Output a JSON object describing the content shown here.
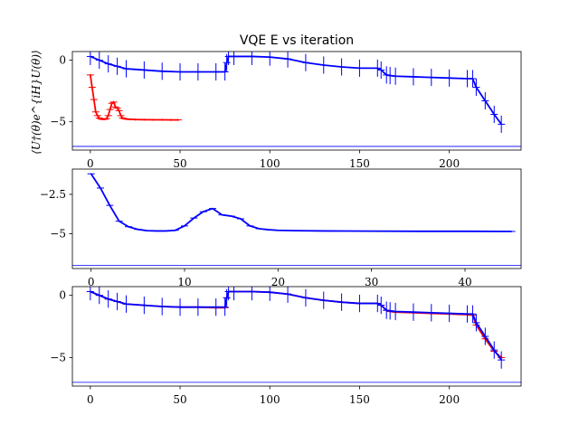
{
  "chart_data": {
    "title": "VQE E vs iteration",
    "panels": [
      {
        "type": "line",
        "ylabel": "⟨U†(θ)e^{iH}U(θ)⟩",
        "xlim": [
          -10,
          240
        ],
        "ylim": [
          -7.3,
          0.7
        ],
        "xticks": [
          0,
          50,
          100,
          150,
          200
        ],
        "yticks": [
          0,
          -5
        ],
        "hline": -7.0,
        "series": [
          {
            "color": "#ff0000",
            "errorbars": true,
            "err": 0.08,
            "x": [
              0,
              1,
              2,
              3,
              4,
              5,
              6,
              7,
              8,
              9,
              10,
              11,
              12,
              13,
              14,
              15,
              16,
              17,
              18,
              19,
              20,
              22,
              25,
              30,
              35,
              40,
              45,
              49
            ],
            "y": [
              -1.2,
              -2.2,
              -3.2,
              -4.2,
              -4.5,
              -4.7,
              -4.78,
              -4.8,
              -4.8,
              -4.75,
              -4.5,
              -4.0,
              -3.5,
              -3.4,
              -3.8,
              -3.9,
              -4.1,
              -4.5,
              -4.7,
              -4.75,
              -4.78,
              -4.8,
              -4.82,
              -4.83,
              -4.84,
              -4.84,
              -4.85,
              -4.85
            ]
          },
          {
            "color": "#0000ff",
            "errorbars": true,
            "err": 0.7,
            "x": [
              0,
              5,
              10,
              15,
              20,
              30,
              40,
              50,
              60,
              70,
              75,
              76,
              77,
              80,
              90,
              100,
              110,
              120,
              130,
              140,
              150,
              160,
              162,
              165,
              167,
              170,
              180,
              190,
              200,
              210,
              213,
              215,
              220,
              225,
              229
            ],
            "y": [
              0.3,
              0.0,
              -0.3,
              -0.5,
              -0.7,
              -0.8,
              -0.9,
              -0.95,
              -0.95,
              -0.95,
              -0.95,
              -0.2,
              0.3,
              0.3,
              0.3,
              0.25,
              0.1,
              -0.2,
              -0.4,
              -0.55,
              -0.65,
              -0.65,
              -0.8,
              -1.2,
              -1.25,
              -1.3,
              -1.35,
              -1.4,
              -1.45,
              -1.5,
              -1.5,
              -2.2,
              -3.3,
              -4.4,
              -5.2
            ]
          }
        ]
      },
      {
        "type": "line",
        "ylabel": "",
        "xlim": [
          -2,
          46
        ],
        "ylim": [
          -7.2,
          -0.9
        ],
        "xticks": [
          0,
          10,
          20,
          30,
          40
        ],
        "yticks": [
          -2.5,
          -5.0
        ],
        "hline": -7.0,
        "series": [
          {
            "color": "#0000ff",
            "errorbars": true,
            "err": 0.03,
            "x": [
              0,
              1,
              2,
              3,
              4,
              5,
              6,
              7,
              8,
              9,
              10,
              11,
              12,
              13,
              14,
              15,
              16,
              17,
              18,
              19,
              20,
              22,
              25,
              30,
              35,
              40,
              45
            ],
            "y": [
              -1.2,
              -2.1,
              -3.2,
              -4.2,
              -4.55,
              -4.72,
              -4.8,
              -4.82,
              -4.82,
              -4.78,
              -4.5,
              -4.0,
              -3.6,
              -3.4,
              -3.8,
              -3.88,
              -4.05,
              -4.5,
              -4.68,
              -4.74,
              -4.78,
              -4.8,
              -4.82,
              -4.83,
              -4.84,
              -4.84,
              -4.85
            ]
          }
        ]
      },
      {
        "type": "line",
        "ylabel": "",
        "xlim": [
          -10,
          240
        ],
        "ylim": [
          -7.3,
          0.7
        ],
        "xticks": [
          0,
          50,
          100,
          150,
          200
        ],
        "yticks": [
          0,
          -5
        ],
        "hline": -7.0,
        "series": [
          {
            "color": "#ff0000",
            "errorbars": true,
            "err": 0.08,
            "x": [
              0,
              5,
              10,
              15,
              20,
              30,
              40,
              50,
              60,
              70,
              75,
              76,
              77,
              80,
              90,
              100,
              110,
              120,
              130,
              140,
              150,
              160,
              162,
              165,
              167,
              170,
              180,
              190,
              200,
              210,
              213,
              215,
              220,
              225,
              229
            ],
            "y": [
              0.3,
              0.0,
              -0.3,
              -0.5,
              -0.7,
              -0.8,
              -0.9,
              -0.95,
              -0.95,
              -1.0,
              -1.0,
              -0.2,
              0.3,
              0.3,
              0.3,
              0.25,
              0.1,
              -0.2,
              -0.4,
              -0.55,
              -0.65,
              -0.65,
              -0.8,
              -1.2,
              -1.3,
              -1.35,
              -1.4,
              -1.45,
              -1.5,
              -1.55,
              -1.6,
              -2.4,
              -3.5,
              -4.5,
              -5.0
            ]
          },
          {
            "color": "#0000ff",
            "errorbars": true,
            "err": 0.7,
            "x": [
              0,
              5,
              10,
              15,
              20,
              30,
              40,
              50,
              60,
              70,
              75,
              76,
              77,
              80,
              90,
              100,
              110,
              120,
              130,
              140,
              150,
              160,
              162,
              165,
              167,
              170,
              180,
              190,
              200,
              210,
              213,
              215,
              220,
              225,
              229
            ],
            "y": [
              0.3,
              0.0,
              -0.3,
              -0.5,
              -0.7,
              -0.8,
              -0.9,
              -0.95,
              -0.95,
              -0.95,
              -0.95,
              -0.2,
              0.3,
              0.3,
              0.3,
              0.25,
              0.1,
              -0.2,
              -0.4,
              -0.55,
              -0.65,
              -0.65,
              -0.8,
              -1.2,
              -1.25,
              -1.3,
              -1.35,
              -1.4,
              -1.45,
              -1.5,
              -1.5,
              -2.2,
              -3.3,
              -4.4,
              -5.2
            ]
          }
        ]
      }
    ]
  }
}
